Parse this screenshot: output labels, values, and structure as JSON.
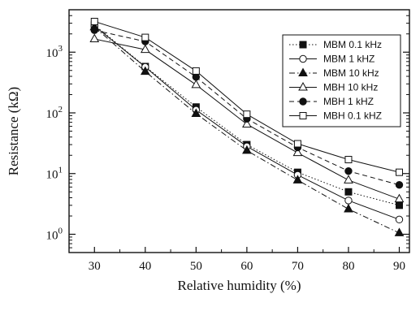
{
  "chart_data": {
    "type": "line",
    "xlabel": "Relative humidity (%)",
    "ylabel": "Resistance (kΩ)",
    "x_ticks": [
      "30",
      "40",
      "50",
      "60",
      "70",
      "80",
      "90"
    ],
    "xlim": [
      25,
      92
    ],
    "ylim": [
      0.5,
      5000
    ],
    "y_scale": "log",
    "y_tick_values": [
      1,
      10,
      100,
      1000
    ],
    "y_tick_labels": [
      {
        "base": "10",
        "exp": "0"
      },
      {
        "base": "10",
        "exp": "1"
      },
      {
        "base": "10",
        "exp": "2"
      },
      {
        "base": "10",
        "exp": "3"
      }
    ],
    "grid": false,
    "legend_position": "top-right",
    "x": [
      30,
      40,
      50,
      60,
      70,
      80,
      90
    ],
    "series": [
      {
        "name": "MBM 0.1 kHz",
        "marker": "square-filled",
        "line": "dotted",
        "values": [
          2800,
          580,
          125,
          30,
          10.5,
          5,
          3
        ]
      },
      {
        "name": "MBM 1 kHZ",
        "marker": "circle-open",
        "line": "solid",
        "values": [
          2700,
          570,
          112,
          28,
          9.5,
          3.6,
          1.75
        ]
      },
      {
        "name": "MBM 10 kHz",
        "marker": "triangle-filled",
        "line": "dashdot",
        "values": [
          2600,
          480,
          97,
          24,
          7.8,
          2.6,
          1.05
        ]
      },
      {
        "name": "MBH 10 kHz",
        "marker": "triangle-open",
        "line": "solid",
        "values": [
          1650,
          1100,
          290,
          65,
          22,
          7.8,
          3.8
        ]
      },
      {
        "name": "MBH 1 kHZ",
        "marker": "circle-filled",
        "line": "dashed",
        "values": [
          2300,
          1500,
          390,
          80,
          27,
          11,
          6.5
        ]
      },
      {
        "name": "MBH 0.1 kHZ",
        "marker": "square-open",
        "line": "solid",
        "values": [
          3200,
          1750,
          490,
          95,
          31,
          17,
          10.5
        ]
      }
    ]
  }
}
